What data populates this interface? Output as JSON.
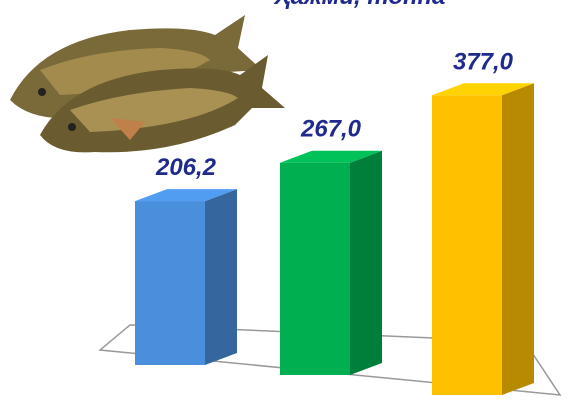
{
  "chart_data": {
    "type": "bar3d",
    "title": "Ҳажми, тонна",
    "values": [
      206.2,
      267.0,
      377.0
    ],
    "value_labels": [
      "206,2",
      "267,0",
      "377,0"
    ],
    "colors": [
      "#4a8fdc",
      "#00b050",
      "#ffc000"
    ]
  }
}
